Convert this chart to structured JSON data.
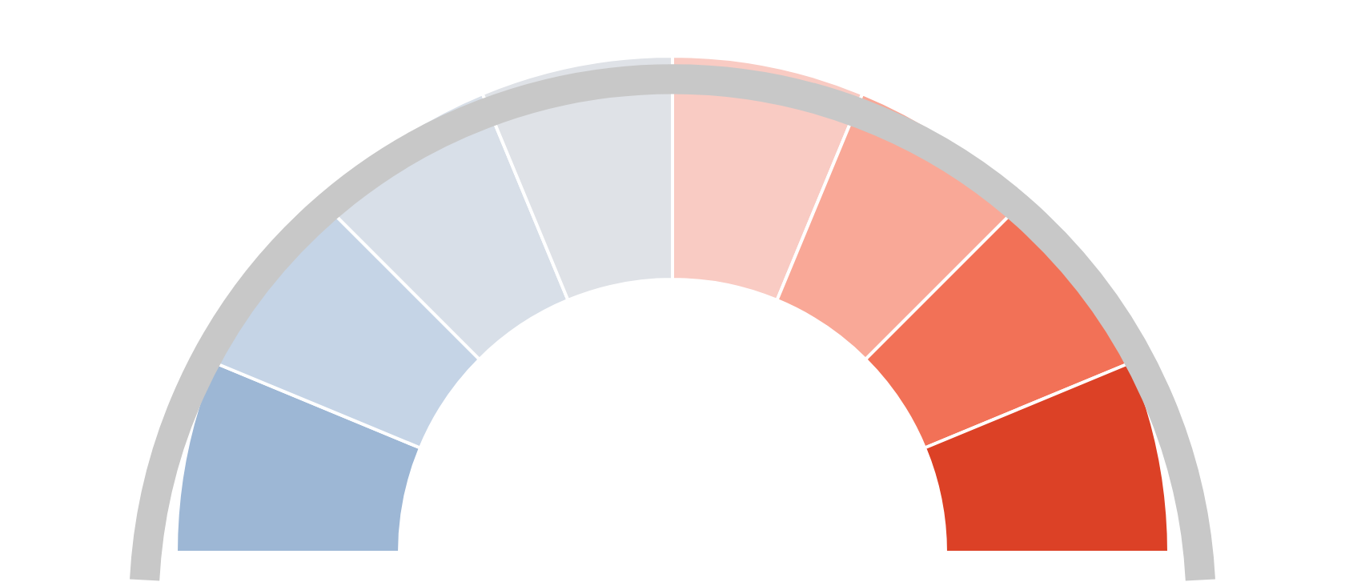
{
  "chart_data": {
    "type": "donut",
    "categories": [
      null,
      null,
      null,
      null,
      null,
      null,
      null,
      null
    ],
    "values": [
      12.5,
      12.5,
      12.5,
      12.5,
      12.5,
      12.5,
      12.5,
      12.5
    ],
    "colors": [
      "#9db7d5",
      "#c5d4e6",
      "#d8dfe8",
      "#dfe2e7",
      "#f9cbc3",
      "#f9a897",
      "#f27157",
      "#dc4126"
    ]
  }
}
